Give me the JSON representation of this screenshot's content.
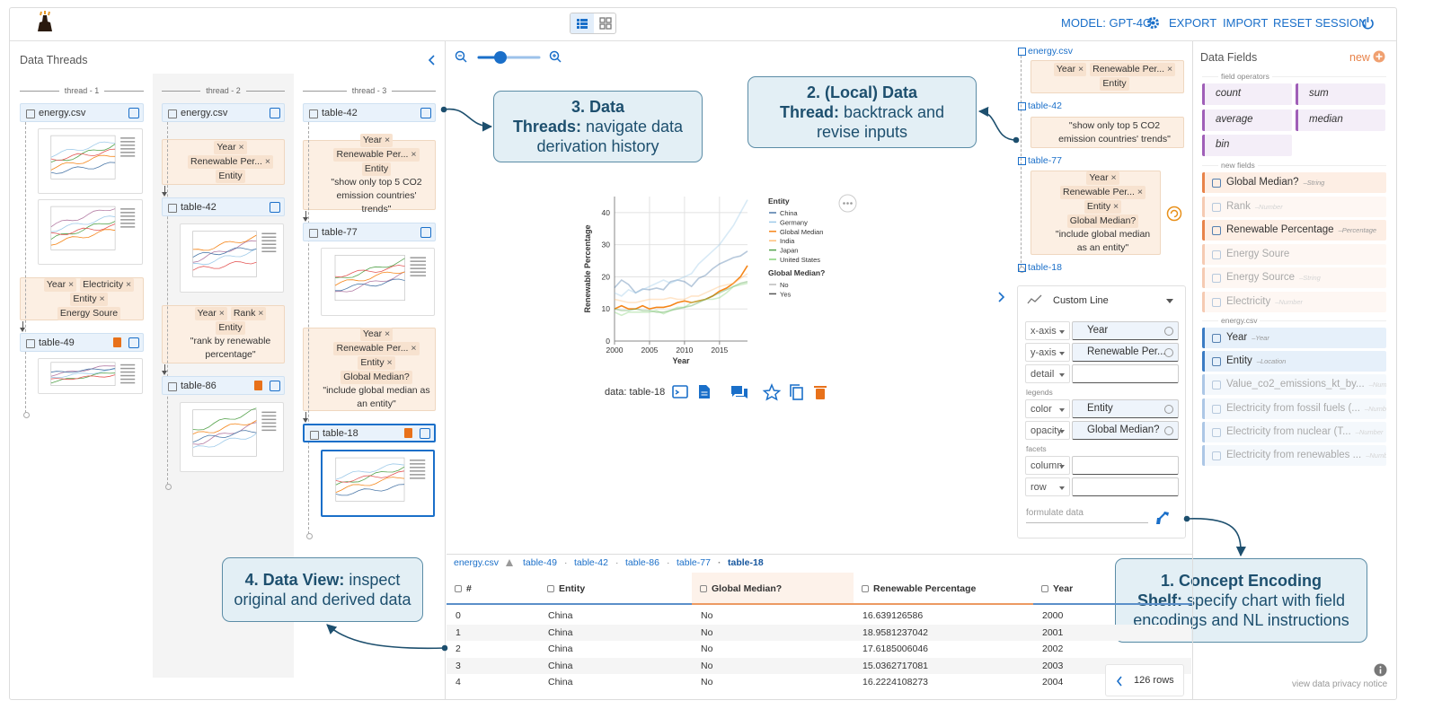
{
  "header": {
    "model": "MODEL: GPT-4O",
    "export": "EXPORT",
    "import": "IMPORT",
    "reset": "RESET SESSION"
  },
  "threads": {
    "title": "Data Threads",
    "columns": [
      {
        "label": "thread - 1",
        "steps": [
          {
            "table": "energy.csv"
          },
          {
            "fields": [
              "Year",
              "Electricity",
              "Entity",
              "Energy Soure"
            ]
          },
          {
            "table": "table-49"
          }
        ]
      },
      {
        "label": "thread - 2",
        "steps": [
          {
            "table": "energy.csv"
          },
          {
            "fields": [
              "Year",
              "Renewable Per...",
              "Entity"
            ]
          },
          {
            "table": "table-42"
          },
          {
            "fields": [
              "Year",
              "Rank",
              "Entity"
            ],
            "instruction": "\"rank by renewable percentage\""
          },
          {
            "table": "table-86"
          }
        ]
      },
      {
        "label": "thread - 3",
        "steps": [
          {
            "table": "table-42"
          },
          {
            "fields": [
              "Year",
              "Renewable Per...",
              "Entity"
            ],
            "instruction": "\"show only top 5 CO2 emission countries' trends\""
          },
          {
            "table": "table-77"
          },
          {
            "fields": [
              "Year",
              "Renewable Per...",
              "Entity",
              "Global Median?"
            ],
            "instruction": "\"include global median as an entity\""
          },
          {
            "table": "table-18"
          }
        ]
      }
    ]
  },
  "callouts": [
    {
      "bold": "3. Data Threads:",
      "text": "navigate data derivation history"
    },
    {
      "bold": "2. (Local) Data Thread:",
      "text": "backtrack and revise inputs"
    },
    {
      "bold": "1. Concept Encoding Shelf:",
      "text": "specify chart with field encodings and NL instructions"
    },
    {
      "bold": "4. Data View:",
      "text": "inspect original and derived data"
    }
  ],
  "local_thread": [
    {
      "table": "energy.csv"
    },
    {
      "fields": [
        "Year",
        "Renewable Per...",
        "Entity"
      ]
    },
    {
      "table": "table-42"
    },
    {
      "instruction": "\"show only top 5 CO2 emission countries' trends\""
    },
    {
      "table": "table-77"
    },
    {
      "fields": [
        "Year",
        "Renewable Per...",
        "Entity",
        "Global Median?"
      ],
      "instruction": "\"include global median as an entity\""
    },
    {
      "table": "table-18"
    }
  ],
  "chart": {
    "type": "line",
    "x_label": "Year",
    "y_label": "Renewable Percentage",
    "x": [
      2000,
      2001,
      2002,
      2003,
      2004,
      2005,
      2006,
      2007,
      2008,
      2009,
      2010,
      2011,
      2012,
      2013,
      2014,
      2015,
      2016,
      2017,
      2018,
      2019
    ],
    "xlim": [
      2000,
      2019
    ],
    "xticks": [
      2000,
      2005,
      2010,
      2015
    ],
    "ylim": [
      0,
      45
    ],
    "yticks": [
      0,
      10,
      20,
      30,
      40
    ],
    "grid": true,
    "legend_title": "Entity",
    "opacity_legend": {
      "title": "Global Median?",
      "values": [
        "No",
        "Yes"
      ]
    },
    "series": [
      {
        "name": "China",
        "color": "#4c78a8",
        "group": "No",
        "values": [
          16.6,
          19.0,
          17.6,
          15.0,
          16.2,
          16.0,
          16.5,
          16.0,
          18.5,
          19.0,
          18.5,
          17.0,
          19.5,
          20.5,
          22.5,
          24.0,
          25.0,
          26.0,
          26.5,
          28.0
        ]
      },
      {
        "name": "Germany",
        "color": "#9ecae9",
        "group": "No",
        "values": [
          15,
          14,
          16,
          15,
          16,
          17,
          18,
          19,
          18,
          19,
          20,
          21,
          24,
          26,
          28,
          30,
          33,
          36,
          40,
          44
        ]
      },
      {
        "name": "Global Median",
        "color": "#f58518",
        "group": "Yes",
        "values": [
          10,
          11,
          10,
          10,
          11,
          10,
          10.5,
          10.5,
          11,
          12,
          12.5,
          12,
          12.5,
          13,
          14,
          15.5,
          16.5,
          18,
          20,
          23.5
        ]
      },
      {
        "name": "India",
        "color": "#ffbf79",
        "group": "No",
        "values": [
          13,
          12.5,
          12,
          12,
          12.5,
          13,
          13,
          13,
          13.5,
          13,
          13,
          14,
          14,
          15,
          16,
          17,
          17.5,
          18,
          19.5,
          21
        ]
      },
      {
        "name": "Japan",
        "color": "#54a24b",
        "group": "No",
        "values": [
          10,
          9.5,
          9.5,
          10,
          9.5,
          9.5,
          9,
          9,
          9.5,
          10,
          10.5,
          11,
          12,
          13,
          14,
          15,
          16,
          17,
          18,
          18.5
        ]
      },
      {
        "name": "United States",
        "color": "#88d27a",
        "group": "No",
        "values": [
          9,
          8,
          9,
          9,
          9,
          9,
          9.5,
          8.5,
          9.5,
          10.5,
          10.5,
          12,
          12.5,
          13,
          13,
          13.5,
          15,
          17,
          17.5,
          18
        ]
      }
    ],
    "caption": "data: table-18"
  },
  "encoding": {
    "chart_type": "Custom Line",
    "groups": [
      {
        "channels": [
          {
            "name": "x-axis",
            "field": "Year"
          },
          {
            "name": "y-axis",
            "field": "Renewable Per..."
          },
          {
            "name": "detail"
          }
        ]
      },
      {
        "title": "legends",
        "channels": [
          {
            "name": "color",
            "field": "Entity"
          },
          {
            "name": "opacity",
            "field": "Global Median?"
          }
        ]
      },
      {
        "title": "facets",
        "channels": [
          {
            "name": "column"
          },
          {
            "name": "row"
          }
        ]
      }
    ],
    "prompt_placeholder": "formulate data"
  },
  "fields": {
    "title": "Data Fields",
    "new": "new",
    "operators_title": "field operators",
    "operators": [
      "count",
      "sum",
      "average",
      "median",
      "bin"
    ],
    "new_title": "new fields",
    "new_fields": [
      {
        "name": "Global Median?",
        "type": "String"
      },
      {
        "name": "Rank",
        "type": "Number",
        "faded": true
      },
      {
        "name": "Renewable Percentage",
        "type": "Percentage"
      },
      {
        "name": "Energy Soure",
        "faded": true
      },
      {
        "name": "Energy Source",
        "type": "String",
        "faded": true
      },
      {
        "name": "Electricity",
        "type": "Number",
        "faded": true
      }
    ],
    "source_title": "energy.csv",
    "source_fields": [
      {
        "name": "Year",
        "type": "Year"
      },
      {
        "name": "Entity",
        "type": "Location"
      },
      {
        "name": "Value_co2_emissions_kt_by...",
        "type": "Number",
        "faded": true
      },
      {
        "name": "Electricity from fossil fuels (...",
        "type": "Number",
        "faded": true
      },
      {
        "name": "Electricity from nuclear (T...",
        "type": "Number",
        "faded": true
      },
      {
        "name": "Electricity from renewables ...",
        "type": "Number",
        "faded": true
      }
    ]
  },
  "table": {
    "path": [
      "energy.csv",
      "table-49",
      "table-42",
      "table-86",
      "table-77",
      "table-18"
    ],
    "columns": [
      {
        "name": "#"
      },
      {
        "name": "Entity"
      },
      {
        "name": "Global Median?",
        "derived": true
      },
      {
        "name": "Renewable Percentage",
        "derived": true
      },
      {
        "name": "Year"
      }
    ],
    "rows": [
      [
        0,
        "China",
        "No",
        16.639126586,
        2000
      ],
      [
        1,
        "China",
        "No",
        18.9581237042,
        2001
      ],
      [
        2,
        "China",
        "No",
        17.6185006046,
        2002
      ],
      [
        3,
        "China",
        "No",
        15.0362717081,
        2003
      ],
      [
        4,
        "China",
        "No",
        16.2224108273,
        2004
      ]
    ],
    "row_count": "126 rows"
  },
  "privacy": "view data privacy notice"
}
